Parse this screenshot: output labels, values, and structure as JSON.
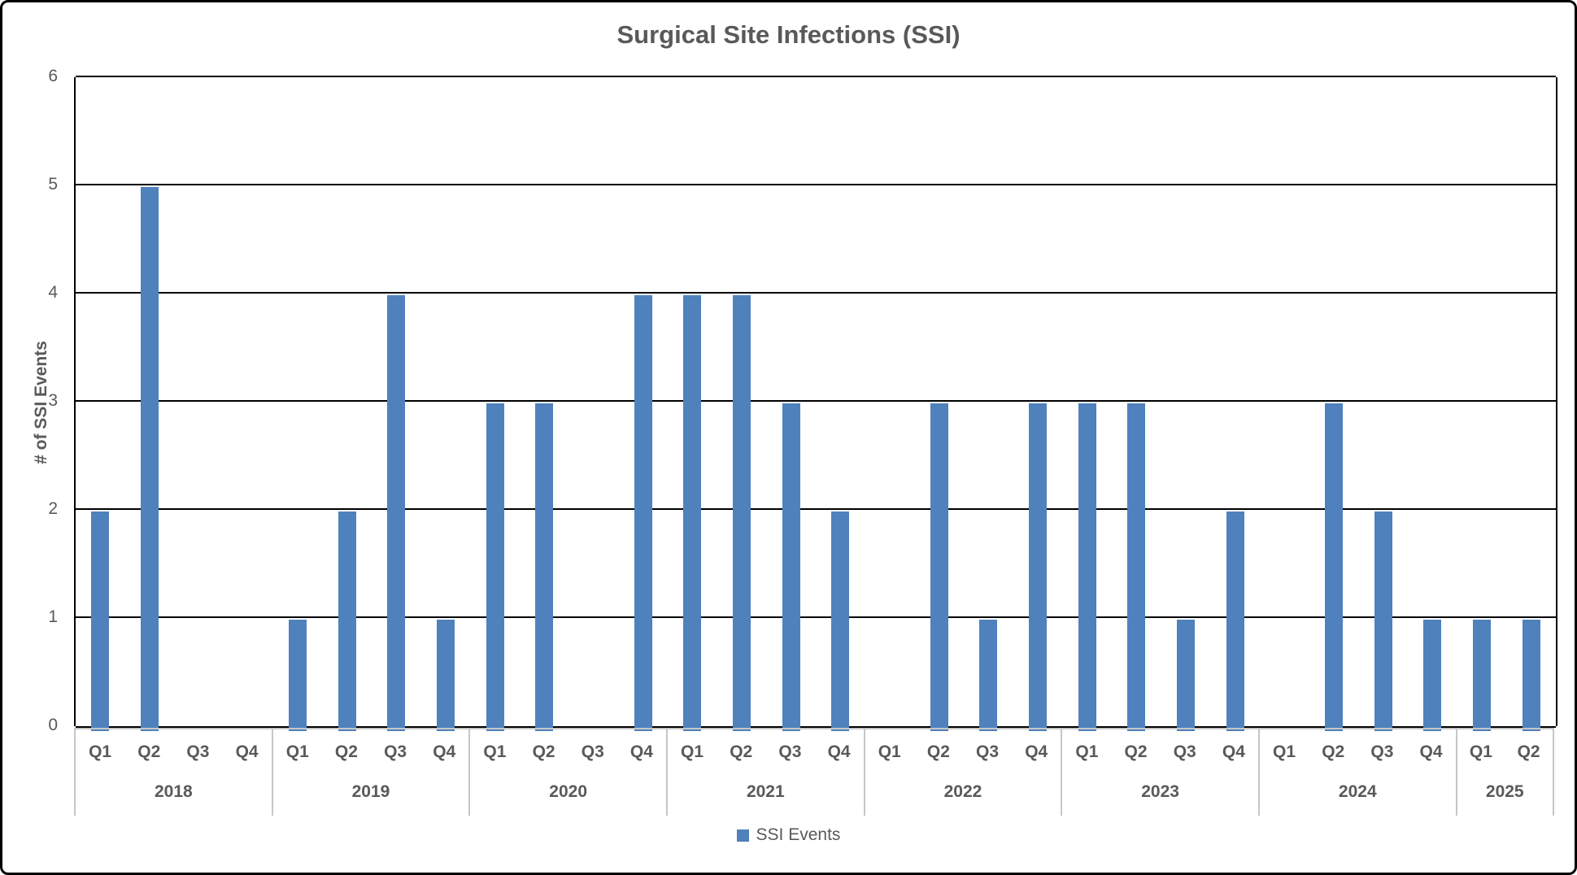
{
  "title": "Surgical Site Infections (SSI)",
  "y_axis": {
    "label": "# of SSI Events"
  },
  "legend": {
    "items": [
      {
        "label": "SSI Events",
        "color": "#4f81bd"
      }
    ],
    "position": "bottom-center"
  },
  "colors": {
    "bar": "#4f81bd",
    "text": "#595959",
    "gridline": "#000000",
    "axis_table_line": "#c6c6c6",
    "frame_border": "#000000"
  },
  "chart_data": {
    "type": "bar",
    "title": "Surgical Site Infections (SSI)",
    "xlabel": "",
    "ylabel": "# of SSI Events",
    "ylim": [
      0,
      6
    ],
    "y_tick_step": 1,
    "y_tick_labels": [
      "0",
      "1",
      "2",
      "3",
      "4",
      "5",
      "6"
    ],
    "grid": true,
    "legend_entries": [
      "SSI Events"
    ],
    "legend_position": "bottom",
    "series_name": "SSI Events",
    "groups": [
      {
        "year": "2018",
        "quarters": [
          "Q1",
          "Q2",
          "Q3",
          "Q4"
        ],
        "values": [
          2,
          5,
          0,
          0
        ]
      },
      {
        "year": "2019",
        "quarters": [
          "Q1",
          "Q2",
          "Q3",
          "Q4"
        ],
        "values": [
          1,
          2,
          4,
          1
        ]
      },
      {
        "year": "2020",
        "quarters": [
          "Q1",
          "Q2",
          "Q3",
          "Q4"
        ],
        "values": [
          3,
          3,
          0,
          4
        ]
      },
      {
        "year": "2021",
        "quarters": [
          "Q1",
          "Q2",
          "Q3",
          "Q4"
        ],
        "values": [
          4,
          4,
          3,
          2
        ]
      },
      {
        "year": "2022",
        "quarters": [
          "Q1",
          "Q2",
          "Q3",
          "Q4"
        ],
        "values": [
          0,
          3,
          1,
          3
        ]
      },
      {
        "year": "2023",
        "quarters": [
          "Q1",
          "Q2",
          "Q3",
          "Q4"
        ],
        "values": [
          3,
          3,
          1,
          2
        ]
      },
      {
        "year": "2024",
        "quarters": [
          "Q1",
          "Q2",
          "Q3",
          "Q4"
        ],
        "values": [
          0,
          3,
          2,
          1
        ]
      },
      {
        "year": "2025",
        "quarters": [
          "Q1",
          "Q2"
        ],
        "values": [
          1,
          1
        ]
      }
    ]
  }
}
